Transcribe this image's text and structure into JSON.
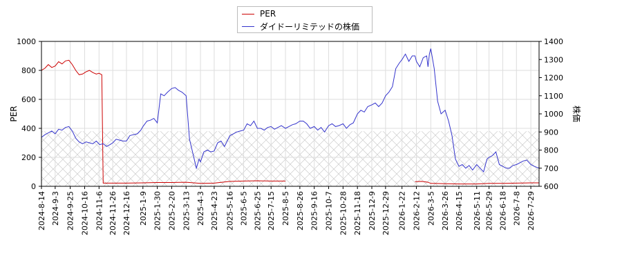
{
  "chart_data": {
    "type": "line",
    "title": "",
    "ylabel": "PER",
    "y2label": "株価",
    "ylim": [
      0,
      1000
    ],
    "y2lim": [
      600,
      1400
    ],
    "yticks": [
      0,
      200,
      400,
      600,
      800,
      1000
    ],
    "y2ticks": [
      600,
      700,
      800,
      900,
      1000,
      1100,
      1200,
      1300,
      1400
    ],
    "xlim": [
      "2024-08-14",
      "2026-08-10"
    ],
    "xticks": [
      "2024-8-14",
      "2024-9-3",
      "2024-9-25",
      "2024-10-16",
      "2024-11-6",
      "2024-11-26",
      "2024-12-16",
      "2025-1-9",
      "2025-1-30",
      "2025-2-20",
      "2025-3-13",
      "2025-4-3",
      "2025-4-23",
      "2025-5-16",
      "2025-6-5",
      "2025-6-25",
      "2025-7-15",
      "2025-8-5",
      "2025-8-26",
      "2025-9-16",
      "2025-10-7",
      "2025-10-28",
      "2025-11-18",
      "2025-12-9",
      "2025-12-29",
      "2026-1-22",
      "2026-2-12",
      "2026-3-5",
      "2026-3-26",
      "2026-4-15",
      "2026-5-11",
      "2026-5-29",
      "2026-6-18",
      "2026-7-8",
      "2026-7-29"
    ],
    "grid": true,
    "legend_position": "top-center",
    "shaded_band": {
      "from": 0,
      "to": 380
    },
    "series": [
      {
        "name": "PER",
        "color": "#cc0000",
        "axis": "left",
        "x": [
          "2024-08-14",
          "2024-08-19",
          "2024-08-24",
          "2024-08-29",
          "2024-09-03",
          "2024-09-08",
          "2024-09-13",
          "2024-09-18",
          "2024-09-23",
          "2024-09-28",
          "2024-10-03",
          "2024-10-08",
          "2024-10-13",
          "2024-10-18",
          "2024-10-23",
          "2024-10-28",
          "2024-11-02",
          "2024-11-06",
          "2024-11-10",
          "2024-11-12",
          "2024-11-26",
          "2024-12-16",
          "2025-01-09",
          "2025-01-30",
          "2025-02-20",
          "2025-03-13",
          "2025-04-03",
          "2025-04-23",
          "2025-05-16",
          "2025-06-05",
          "2025-06-25",
          "2025-07-15",
          "2025-08-05",
          null,
          "2026-02-10",
          "2026-02-20",
          "2026-03-01",
          "2026-03-05",
          "2026-03-26",
          "2026-04-15",
          "2026-05-11",
          "2026-05-29",
          "2026-06-18",
          "2026-07-08",
          "2026-07-29",
          "2026-08-10"
        ],
        "values": [
          800,
          815,
          840,
          820,
          830,
          860,
          845,
          865,
          870,
          840,
          800,
          770,
          775,
          790,
          800,
          785,
          775,
          780,
          770,
          22,
          22,
          22,
          24,
          26,
          26,
          28,
          20,
          22,
          34,
          36,
          38,
          36,
          36,
          null,
          32,
          34,
          28,
          20,
          18,
          16,
          16,
          20,
          20,
          22,
          24,
          24
        ]
      },
      {
        "name": "ダイドーリミテッドの株価",
        "color": "#3333cc",
        "axis": "right",
        "x": [
          "2024-08-14",
          "2024-08-19",
          "2024-08-24",
          "2024-08-29",
          "2024-09-03",
          "2024-09-08",
          "2024-09-13",
          "2024-09-18",
          "2024-09-23",
          "2024-09-28",
          "2024-10-03",
          "2024-10-08",
          "2024-10-13",
          "2024-10-18",
          "2024-10-23",
          "2024-10-28",
          "2024-11-02",
          "2024-11-07",
          "2024-11-12",
          "2024-11-17",
          "2024-11-22",
          "2024-11-26",
          "2024-12-01",
          "2024-12-06",
          "2024-12-11",
          "2024-12-16",
          "2024-12-21",
          "2024-12-26",
          "2025-01-01",
          "2025-01-06",
          "2025-01-09",
          "2025-01-15",
          "2025-01-20",
          "2025-01-25",
          "2025-01-30",
          "2025-02-04",
          "2025-02-09",
          "2025-02-14",
          "2025-02-20",
          "2025-02-25",
          "2025-03-02",
          "2025-03-07",
          "2025-03-13",
          "2025-03-18",
          "2025-03-23",
          "2025-03-28",
          "2025-04-01",
          "2025-04-03",
          "2025-04-08",
          "2025-04-13",
          "2025-04-18",
          "2025-04-23",
          "2025-04-28",
          "2025-05-03",
          "2025-05-08",
          "2025-05-16",
          "2025-05-21",
          "2025-05-26",
          "2025-05-31",
          "2025-06-05",
          "2025-06-10",
          "2025-06-15",
          "2025-06-20",
          "2025-06-25",
          "2025-06-30",
          "2025-07-05",
          "2025-07-10",
          "2025-07-15",
          "2025-07-20",
          "2025-07-25",
          "2025-07-30",
          "2025-08-05",
          "2025-08-10",
          "2025-08-15",
          "2025-08-20",
          "2025-08-26",
          "2025-08-31",
          "2025-09-05",
          "2025-09-10",
          "2025-09-16",
          "2025-09-21",
          "2025-09-26",
          "2025-10-01",
          "2025-10-07",
          "2025-10-12",
          "2025-10-17",
          "2025-10-22",
          "2025-10-28",
          "2025-11-02",
          "2025-11-07",
          "2025-11-12",
          "2025-11-18",
          "2025-11-23",
          "2025-11-28",
          "2025-12-03",
          "2025-12-09",
          "2025-12-14",
          "2025-12-19",
          "2025-12-24",
          "2025-12-29",
          "2026-01-03",
          "2026-01-08",
          "2026-01-13",
          "2026-01-18",
          "2026-01-22",
          "2026-01-27",
          "2026-02-01",
          "2026-02-06",
          "2026-02-10",
          "2026-02-12",
          "2026-02-17",
          "2026-02-22",
          "2026-02-27",
          "2026-03-01",
          "2026-03-03",
          "2026-03-05",
          "2026-03-10",
          "2026-03-15",
          "2026-03-20",
          "2026-03-26",
          "2026-03-31",
          "2026-04-05",
          "2026-04-10",
          "2026-04-15",
          "2026-04-20",
          "2026-04-25",
          "2026-04-30",
          "2026-05-05",
          "2026-05-11",
          "2026-05-16",
          "2026-05-21",
          "2026-05-26",
          "2026-05-29",
          "2026-06-03",
          "2026-06-08",
          "2026-06-13",
          "2026-06-18",
          "2026-06-23",
          "2026-06-28",
          "2026-07-03",
          "2026-07-08",
          "2026-07-13",
          "2026-07-18",
          "2026-07-23",
          "2026-07-29",
          "2026-08-03",
          "2026-08-10"
        ],
        "values": [
          870,
          885,
          895,
          905,
          890,
          915,
          910,
          925,
          930,
          905,
          865,
          845,
          835,
          845,
          840,
          835,
          850,
          830,
          835,
          820,
          830,
          840,
          860,
          855,
          850,
          850,
          880,
          885,
          890,
          910,
          930,
          960,
          965,
          975,
          950,
          1110,
          1100,
          1120,
          1140,
          1145,
          1130,
          1120,
          1100,
          860,
          780,
          700,
          750,
          735,
          790,
          800,
          790,
          795,
          840,
          850,
          820,
          880,
          890,
          900,
          905,
          910,
          945,
          935,
          960,
          920,
          920,
          910,
          925,
          930,
          915,
          925,
          935,
          920,
          930,
          940,
          945,
          960,
          960,
          945,
          920,
          930,
          910,
          925,
          900,
          935,
          945,
          930,
          935,
          945,
          920,
          940,
          950,
          1000,
          1020,
          1010,
          1040,
          1050,
          1060,
          1040,
          1060,
          1100,
          1120,
          1150,
          1250,
          1280,
          1300,
          1330,
          1290,
          1320,
          1320,
          1290,
          1260,
          1310,
          1320,
          1260,
          1330,
          1360,
          1250,
          1070,
          1000,
          1020,
          960,
          880,
          750,
          710,
          720,
          700,
          715,
          690,
          720,
          700,
          680,
          750,
          760,
          770,
          790,
          720,
          710,
          700,
          700,
          715,
          720,
          730,
          740,
          745,
          720,
          710,
          700
        ]
      }
    ]
  }
}
